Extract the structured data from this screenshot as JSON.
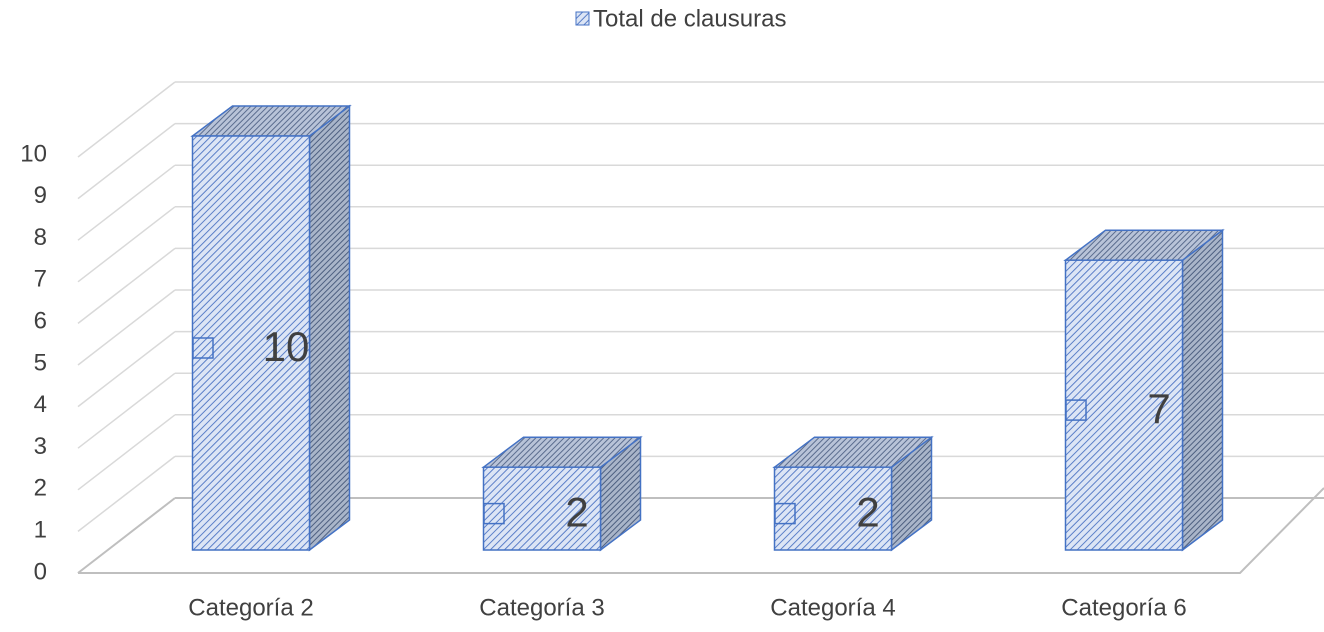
{
  "chart_data": {
    "type": "bar3d",
    "categories": [
      "Categoría 2",
      "Categoría 3",
      "Categoría 4",
      "Categoría 6"
    ],
    "series": [
      {
        "name": "Total de clausuras",
        "color": "#4472c4",
        "values": [
          10,
          2,
          2,
          7
        ]
      }
    ],
    "ylim": [
      0,
      10
    ],
    "yticks": [
      0,
      1,
      2,
      3,
      4,
      5,
      6,
      7,
      8,
      9,
      10
    ],
    "grid": true,
    "legend": "top"
  }
}
